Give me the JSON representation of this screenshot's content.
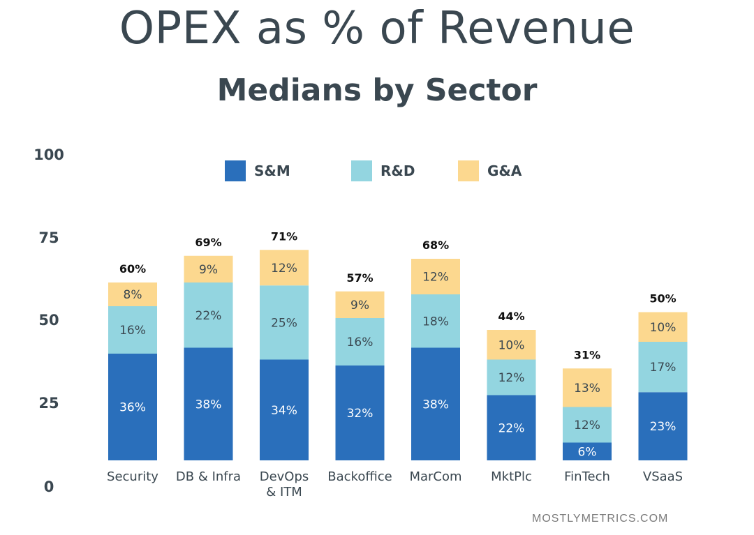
{
  "title": "OPEX as % of Revenue",
  "subtitle": "Medians by Sector",
  "footer": "MOSTLYMETRICS.COM",
  "chart_data": {
    "type": "bar",
    "stacked": true,
    "categories": [
      "Security",
      "DB & Infra",
      "DevOps\n& ITM",
      "Backoffice",
      "MarCom",
      "MktPlc",
      "FinTech",
      "VSaaS"
    ],
    "series": [
      {
        "name": "S&M",
        "color": "#2a6fbb",
        "label_color": "#ffffff",
        "values": [
          36,
          38,
          34,
          32,
          38,
          22,
          6,
          23
        ]
      },
      {
        "name": "R&D",
        "color": "#93d5e0",
        "label_color": "#3a4750",
        "values": [
          16,
          22,
          25,
          16,
          18,
          12,
          12,
          17
        ]
      },
      {
        "name": "G&A",
        "color": "#fcd88f",
        "label_color": "#3a4750",
        "values": [
          8,
          9,
          12,
          9,
          12,
          10,
          13,
          10
        ]
      }
    ],
    "totals": [
      "60%",
      "69%",
      "71%",
      "57%",
      "68%",
      "44%",
      "31%",
      "50%"
    ],
    "ylim": [
      0,
      100
    ],
    "yticks": [
      0,
      25,
      50,
      75,
      100
    ],
    "value_suffix": "%",
    "grid": false,
    "legend_position": "top"
  }
}
